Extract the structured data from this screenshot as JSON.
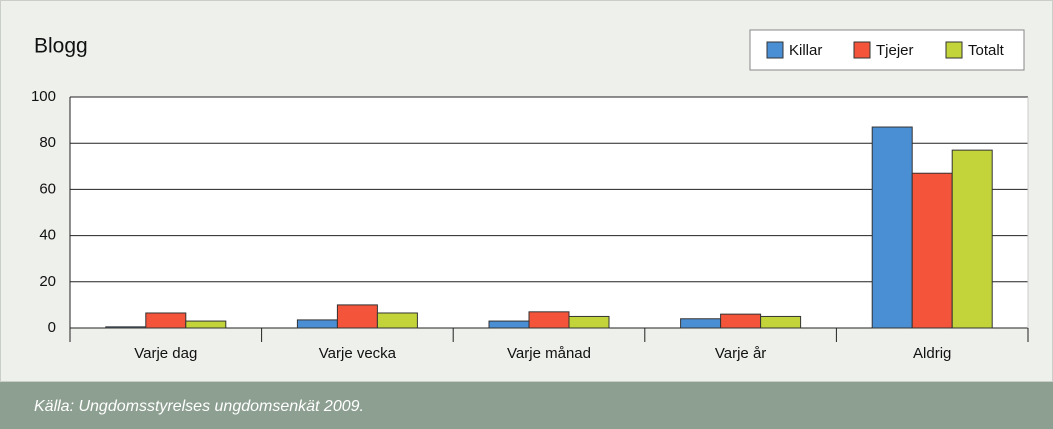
{
  "chart_data": {
    "type": "bar",
    "title": "Blogg",
    "categories": [
      "Varje dag",
      "Varje vecka",
      "Varje månad",
      "Varje år",
      "Aldrig"
    ],
    "series": [
      {
        "name": "Killar",
        "color": "#4a8fd4",
        "values": [
          0.5,
          3.5,
          3,
          4,
          87
        ]
      },
      {
        "name": "Tjejer",
        "color": "#f4553a",
        "values": [
          6.5,
          10,
          7,
          6,
          67
        ]
      },
      {
        "name": "Totalt",
        "color": "#c2d43a",
        "values": [
          3,
          6.5,
          5,
          5,
          77
        ]
      }
    ],
    "ylim": [
      0,
      100
    ],
    "yticks": [
      0,
      20,
      40,
      60,
      80,
      100
    ],
    "grid": true,
    "legend": "top-right",
    "source": "Källa: Ungdomsstyrelses ungdomsenkät 2009."
  }
}
